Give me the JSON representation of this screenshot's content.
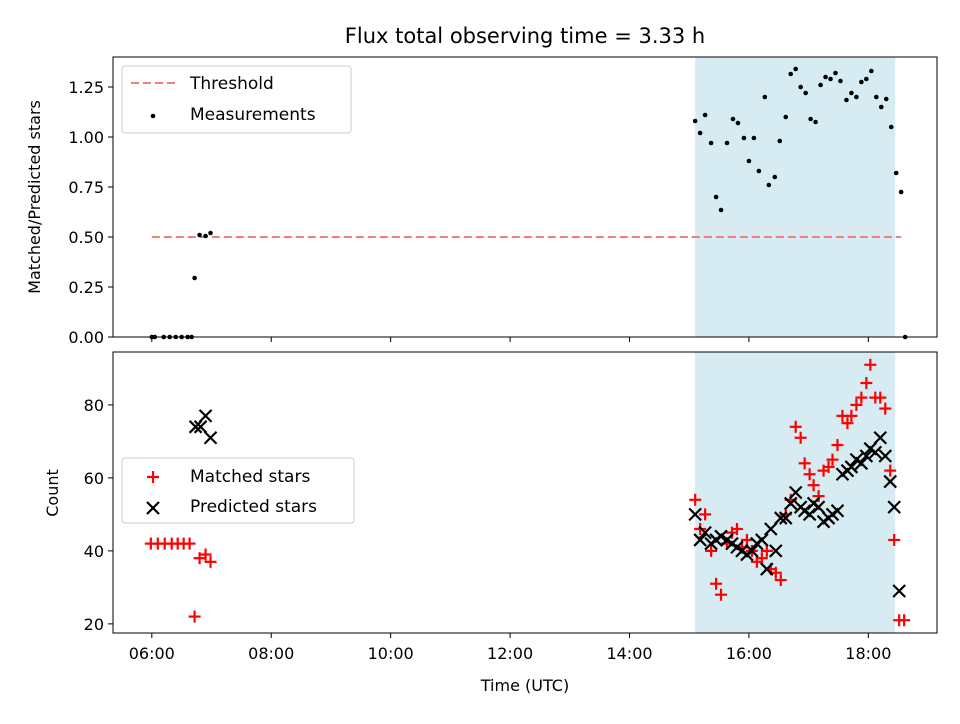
{
  "chart_data": [
    {
      "type": "scatter",
      "title": "Flux total observing time = 3.33 h",
      "xlabel": "",
      "ylabel": "Matched/Predicted stars",
      "ylim": [
        0,
        1.4
      ],
      "xlim_hours": [
        5.35,
        19.15
      ],
      "yticks": [
        "0.00",
        "0.25",
        "0.50",
        "0.75",
        "1.00",
        "1.25"
      ],
      "ytick_values": [
        0,
        0.25,
        0.5,
        0.75,
        1.0,
        1.25
      ],
      "shaded_span": {
        "x_start": "15:06",
        "x_end": "18:27",
        "color": "#add8e6"
      },
      "legend": {
        "placement": "top-left",
        "entries": [
          "Threshold",
          "Measurements"
        ]
      },
      "threshold": {
        "name": "Threshold",
        "value": 0.5,
        "x_start": "06:00",
        "x_end": "18:33",
        "color": "#f08080",
        "style": "dashed"
      },
      "series": [
        {
          "name": "Measurements",
          "color": "#000000",
          "marker": "dot",
          "points": [
            [
              "06:00",
              0.0
            ],
            [
              "06:03",
              0.0
            ],
            [
              "06:12",
              0.0
            ],
            [
              "06:18",
              0.0
            ],
            [
              "06:24",
              0.0
            ],
            [
              "06:30",
              0.0
            ],
            [
              "06:36",
              0.0
            ],
            [
              "06:40",
              0.0
            ],
            [
              "06:43",
              0.295
            ],
            [
              "06:48",
              0.51
            ],
            [
              "06:54",
              0.505
            ],
            [
              "06:59",
              0.52
            ],
            [
              "15:06",
              1.08
            ],
            [
              "15:11",
              1.02
            ],
            [
              "15:16",
              1.11
            ],
            [
              "15:22",
              0.97
            ],
            [
              "15:27",
              0.7
            ],
            [
              "15:32",
              0.635
            ],
            [
              "15:38",
              0.97
            ],
            [
              "15:44",
              1.09
            ],
            [
              "15:49",
              1.07
            ],
            [
              "15:55",
              0.995
            ],
            [
              "16:00",
              0.88
            ],
            [
              "16:05",
              0.995
            ],
            [
              "16:10",
              0.83
            ],
            [
              "16:16",
              1.2
            ],
            [
              "16:20",
              0.76
            ],
            [
              "16:26",
              0.8
            ],
            [
              "16:31",
              0.98
            ],
            [
              "16:37",
              1.1
            ],
            [
              "16:42",
              1.315
            ],
            [
              "16:47",
              1.34
            ],
            [
              "16:52",
              1.25
            ],
            [
              "16:57",
              1.22
            ],
            [
              "17:02",
              1.09
            ],
            [
              "17:07",
              1.075
            ],
            [
              "17:12",
              1.26
            ],
            [
              "17:17",
              1.3
            ],
            [
              "17:22",
              1.29
            ],
            [
              "17:27",
              1.32
            ],
            [
              "17:32",
              1.28
            ],
            [
              "17:38",
              1.185
            ],
            [
              "17:43",
              1.22
            ],
            [
              "17:48",
              1.2
            ],
            [
              "17:53",
              1.275
            ],
            [
              "17:58",
              1.29
            ],
            [
              "18:03",
              1.33
            ],
            [
              "18:08",
              1.2
            ],
            [
              "18:13",
              1.15
            ],
            [
              "18:18",
              1.19
            ],
            [
              "18:23",
              1.05
            ],
            [
              "18:28",
              0.82
            ],
            [
              "18:33",
              0.725
            ],
            [
              "18:37",
              0.0
            ]
          ]
        }
      ]
    },
    {
      "type": "scatter",
      "title": "",
      "xlabel": "Time (UTC)",
      "ylabel": "Count",
      "ylim": [
        17.5,
        94.5
      ],
      "xlim_hours": [
        5.35,
        19.15
      ],
      "xticks": [
        "06:00",
        "08:00",
        "10:00",
        "12:00",
        "14:00",
        "16:00",
        "18:00"
      ],
      "xtick_hours": [
        6,
        8,
        10,
        12,
        14,
        16,
        18
      ],
      "yticks": [
        "20",
        "40",
        "60",
        "80"
      ],
      "ytick_values": [
        20,
        40,
        60,
        80
      ],
      "shaded_span": {
        "x_start": "15:06",
        "x_end": "18:27",
        "color": "#add8e6"
      },
      "legend": {
        "placement": "center-left",
        "entries": [
          "Matched stars",
          "Predicted stars"
        ]
      },
      "series": [
        {
          "name": "Matched stars",
          "color": "#ff0000",
          "marker": "plus",
          "points": [
            [
              "05:59",
              42
            ],
            [
              "06:06",
              42
            ],
            [
              "06:13",
              42
            ],
            [
              "06:20",
              42
            ],
            [
              "06:26",
              42
            ],
            [
              "06:32",
              42
            ],
            [
              "06:38",
              42
            ],
            [
              "06:43",
              22
            ],
            [
              "06:48",
              38
            ],
            [
              "06:54",
              39
            ],
            [
              "06:59",
              37
            ],
            [
              "15:06",
              54
            ],
            [
              "15:11",
              46
            ],
            [
              "15:16",
              50
            ],
            [
              "15:22",
              40
            ],
            [
              "15:27",
              31
            ],
            [
              "15:32",
              28
            ],
            [
              "15:38",
              42
            ],
            [
              "15:43",
              45
            ],
            [
              "15:48",
              46
            ],
            [
              "15:53",
              41
            ],
            [
              "15:58",
              43
            ],
            [
              "16:03",
              40
            ],
            [
              "16:08",
              37
            ],
            [
              "16:13",
              38
            ],
            [
              "16:18",
              40
            ],
            [
              "16:22",
              35
            ],
            [
              "16:27",
              34
            ],
            [
              "16:32",
              32
            ],
            [
              "16:37",
              50
            ],
            [
              "16:42",
              54
            ],
            [
              "16:47",
              74
            ],
            [
              "16:52",
              71
            ],
            [
              "16:56",
              64
            ],
            [
              "17:01",
              61
            ],
            [
              "17:05",
              58
            ],
            [
              "17:10",
              55
            ],
            [
              "17:15",
              62
            ],
            [
              "17:20",
              63
            ],
            [
              "17:24",
              65
            ],
            [
              "17:29",
              69
            ],
            [
              "17:34",
              77
            ],
            [
              "17:39",
              75
            ],
            [
              "17:43",
              77
            ],
            [
              "17:48",
              80
            ],
            [
              "17:53",
              82
            ],
            [
              "17:58",
              86
            ],
            [
              "18:02",
              91
            ],
            [
              "18:07",
              82
            ],
            [
              "18:12",
              82
            ],
            [
              "18:17",
              79
            ],
            [
              "18:22",
              62
            ],
            [
              "18:26",
              43
            ],
            [
              "18:31",
              21
            ],
            [
              "18:36",
              21
            ]
          ]
        },
        {
          "name": "Predicted stars",
          "color": "#000000",
          "marker": "x",
          "points": [
            [
              "06:44",
              74
            ],
            [
              "06:49",
              74
            ],
            [
              "06:54",
              77
            ],
            [
              "06:59",
              71
            ],
            [
              "15:06",
              50
            ],
            [
              "15:11",
              43
            ],
            [
              "15:16",
              45
            ],
            [
              "15:22",
              42
            ],
            [
              "15:27",
              43
            ],
            [
              "15:32",
              44
            ],
            [
              "15:38",
              43
            ],
            [
              "15:43",
              42
            ],
            [
              "15:48",
              41
            ],
            [
              "15:53",
              40
            ],
            [
              "15:58",
              39
            ],
            [
              "16:03",
              40
            ],
            [
              "16:08",
              42
            ],
            [
              "16:13",
              43
            ],
            [
              "16:18",
              35
            ],
            [
              "16:22",
              46
            ],
            [
              "16:27",
              40
            ],
            [
              "16:32",
              49
            ],
            [
              "16:37",
              49
            ],
            [
              "16:42",
              53
            ],
            [
              "16:47",
              56
            ],
            [
              "16:52",
              52
            ],
            [
              "16:56",
              51
            ],
            [
              "17:01",
              50
            ],
            [
              "17:05",
              53
            ],
            [
              "17:10",
              52
            ],
            [
              "17:15",
              48
            ],
            [
              "17:20",
              49
            ],
            [
              "17:24",
              50
            ],
            [
              "17:29",
              51
            ],
            [
              "17:34",
              61
            ],
            [
              "17:39",
              62
            ],
            [
              "17:43",
              63
            ],
            [
              "17:48",
              65
            ],
            [
              "17:53",
              64
            ],
            [
              "17:58",
              66
            ],
            [
              "18:02",
              68
            ],
            [
              "18:07",
              67
            ],
            [
              "18:12",
              71
            ],
            [
              "18:17",
              66
            ],
            [
              "18:22",
              59
            ],
            [
              "18:26",
              52
            ],
            [
              "18:31",
              29
            ]
          ]
        }
      ]
    }
  ]
}
